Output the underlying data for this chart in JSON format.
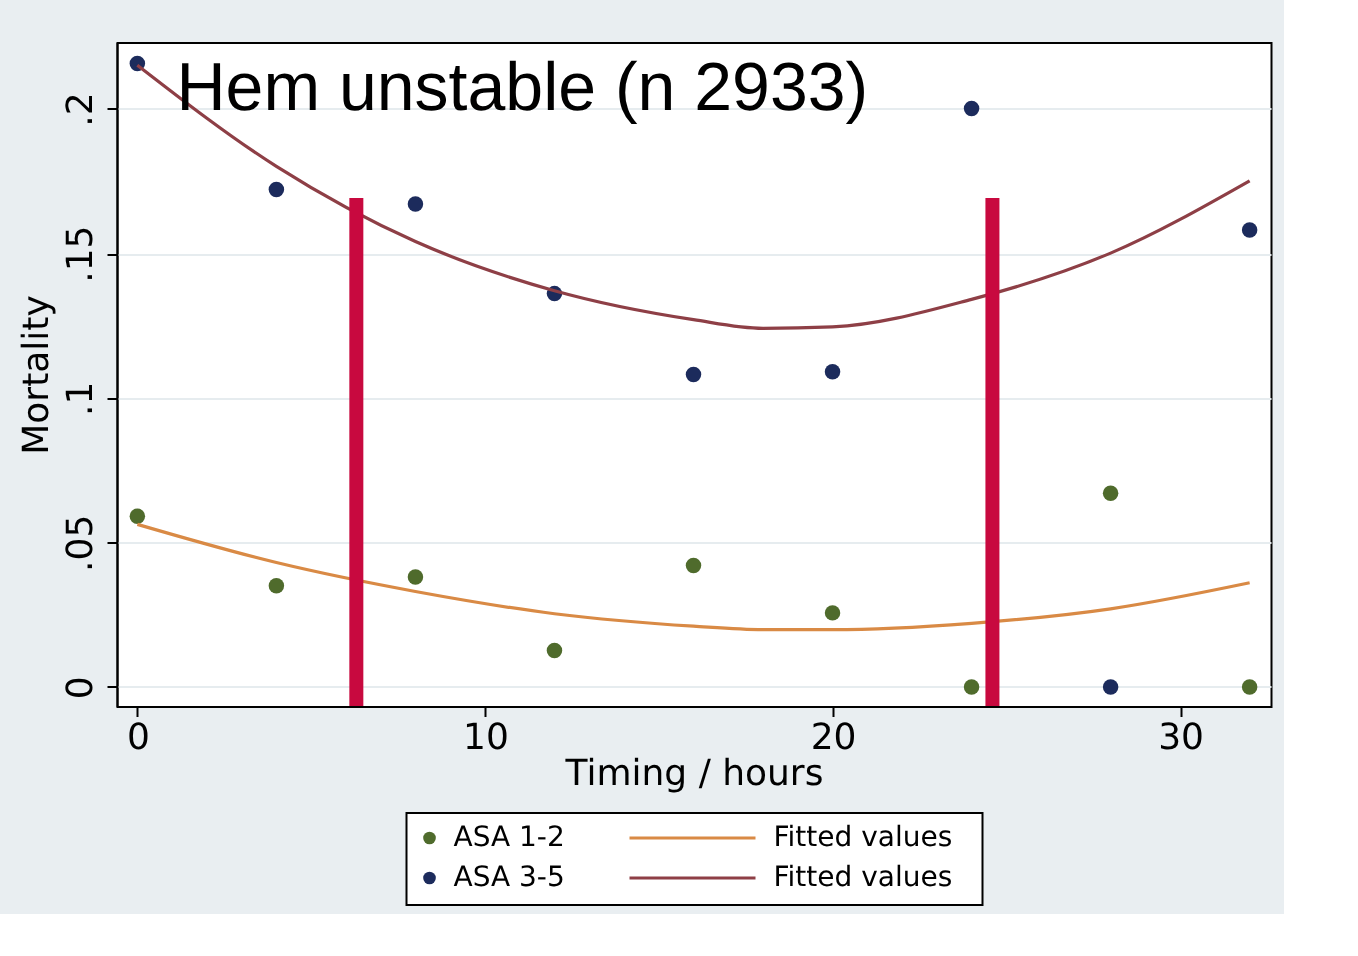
{
  "chart_data": {
    "type": "scatter",
    "title": "Hem unstable (n 2933)",
    "xlabel": "Timing / hours",
    "ylabel": "Mortality",
    "xlim": [
      -0.6,
      32.6
    ],
    "xticks": [
      0,
      10,
      20,
      30
    ],
    "ylim": [
      -0.0066,
      0.223
    ],
    "yticks": [
      {
        "value": 0,
        "label": "0"
      },
      {
        "value": 0.05,
        "label": ".05"
      },
      {
        "value": 0.1,
        "label": ".1"
      },
      {
        "value": 0.15,
        "label": ".15"
      },
      {
        "value": 0.2,
        "label": ".2"
      }
    ],
    "grid": "y",
    "legend": "bottom",
    "series": [
      {
        "name": "ASA 1-2",
        "marker": "circle",
        "color": "#4f6b2c",
        "x": [
          0,
          4,
          8,
          12,
          16,
          20,
          24,
          28,
          32
        ],
        "values": [
          0.059,
          0.035,
          0.038,
          0.0126,
          0.042,
          0.0256,
          0,
          0.067,
          0
        ]
      },
      {
        "name": "ASA 3-5",
        "marker": "circle",
        "color": "#1c2b5c",
        "x": [
          0,
          4,
          8,
          12,
          16,
          20,
          24,
          28,
          32
        ],
        "values": [
          0.2156,
          0.172,
          0.167,
          0.136,
          0.108,
          0.109,
          0.2,
          0,
          0.158
        ]
      },
      {
        "name": "Fitted values",
        "type": "line",
        "color": "#d98a45",
        "x": [
          0,
          4,
          8,
          12,
          16,
          18,
          20,
          24,
          28,
          32
        ],
        "values": [
          0.0562,
          0.043,
          0.033,
          0.0253,
          0.021,
          0.0198,
          0.0198,
          0.022,
          0.027,
          0.036
        ]
      },
      {
        "name": "Fitted values",
        "type": "line",
        "color": "#8e3f46",
        "x": [
          0,
          4,
          8,
          12,
          16,
          18,
          20,
          24,
          28,
          32
        ],
        "values": [
          0.215,
          0.18,
          0.154,
          0.137,
          0.127,
          0.124,
          0.1245,
          0.134,
          0.15,
          0.175
        ]
      }
    ],
    "ref_lines": [
      {
        "axis": "x",
        "value": 6.3,
        "label": null,
        "color": "#c8093f"
      },
      {
        "axis": "x",
        "value": 24.6,
        "label": null,
        "color": "#c8093f"
      }
    ]
  }
}
